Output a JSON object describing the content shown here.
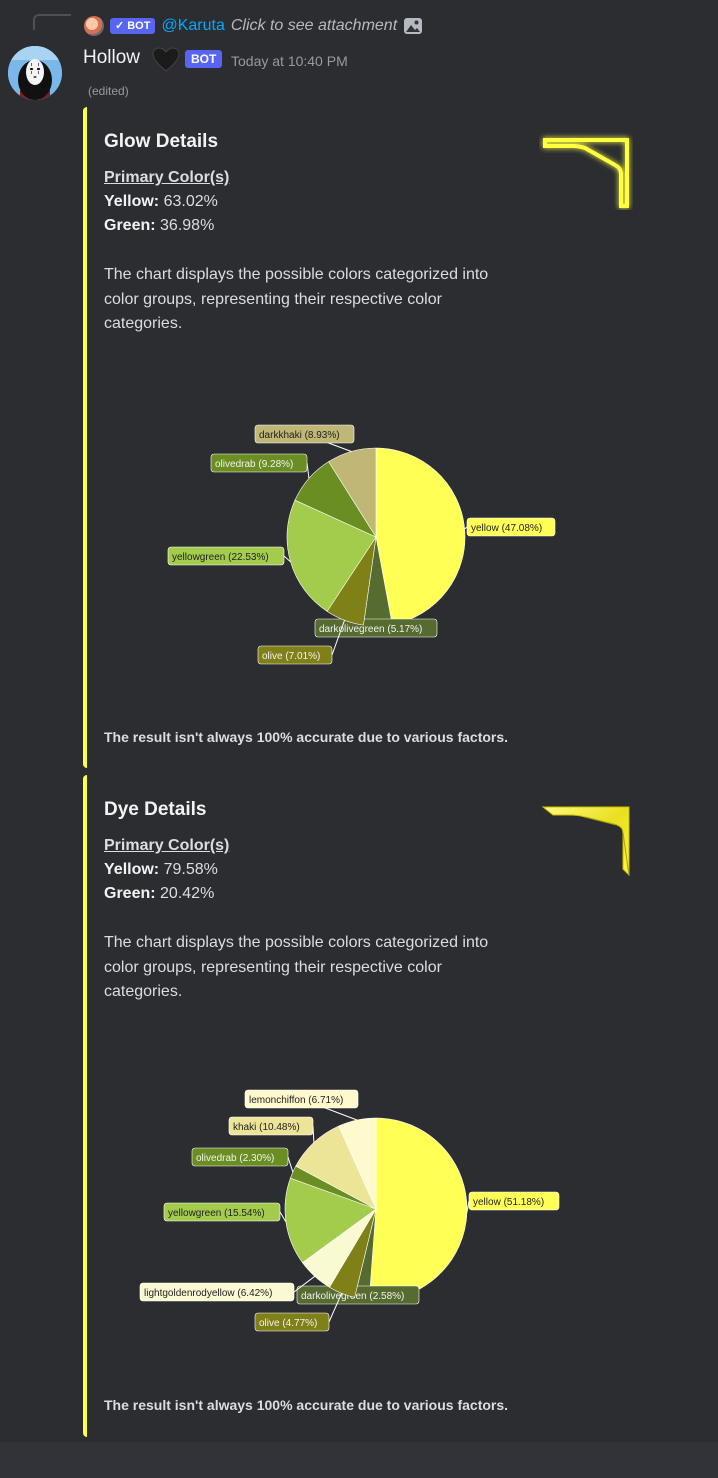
{
  "reply": {
    "bot_badge": "BOT",
    "mention": "@Karuta",
    "text": "Click to see attachment"
  },
  "message": {
    "username": "Hollow",
    "bot_badge": "BOT",
    "timestamp": "Today at 10:40 PM",
    "edited": "(edited)"
  },
  "embeds": [
    {
      "title": "Glow Details",
      "subtitle": "Primary Color(s)",
      "lines": [
        {
          "label": "Yellow:",
          "value": "63.02%"
        },
        {
          "label": "Green:",
          "value": "36.98%"
        }
      ],
      "description": "The chart displays the possible colors categorized into color groups, representing their respective color categories.",
      "footer": "The result isn't always 100% accurate due to various factors."
    },
    {
      "title": "Dye Details",
      "subtitle": "Primary Color(s)",
      "lines": [
        {
          "label": "Yellow:",
          "value": "79.58%"
        },
        {
          "label": "Green:",
          "value": "20.42%"
        }
      ],
      "description": "The chart displays the possible colors categorized into color groups, representing their respective color categories.",
      "footer": "The result isn't always 100% accurate due to various factors."
    }
  ],
  "colors": {
    "embed_border": "#ffff44",
    "mention": "#00a8fc",
    "bot_badge": "#5865f2"
  },
  "chart_data": [
    {
      "type": "pie",
      "title": "",
      "series": [
        {
          "name": "yellow",
          "value": 47.08,
          "label": "yellow (47.08%)",
          "color": "#ffff55"
        },
        {
          "name": "darkolivegreen",
          "value": 5.17,
          "label": "darkolivegreen (5.17%)",
          "color": "#556b2f"
        },
        {
          "name": "olive",
          "value": 7.01,
          "label": "olive (7.01%)",
          "color": "#808018"
        },
        {
          "name": "yellowgreen",
          "value": 22.53,
          "label": "yellowgreen (22.53%)",
          "color": "#a4cc4c"
        },
        {
          "name": "olivedrab",
          "value": 9.28,
          "label": "olivedrab (9.28%)",
          "color": "#6b8e23"
        },
        {
          "name": "darkkhaki",
          "value": 8.93,
          "label": "darkkhaki (8.93%)",
          "color": "#c0b676"
        }
      ]
    },
    {
      "type": "pie",
      "title": "",
      "series": [
        {
          "name": "yellow",
          "value": 51.18,
          "label": "yellow (51.18%)",
          "color": "#ffff55"
        },
        {
          "name": "darkolivegreen",
          "value": 2.58,
          "label": "darkolivegreen (2.58%)",
          "color": "#556b2f"
        },
        {
          "name": "olive",
          "value": 4.77,
          "label": "olive (4.77%)",
          "color": "#808018"
        },
        {
          "name": "lightgoldenrodyellow",
          "value": 6.42,
          "label": "lightgoldenrodyellow (6.42%)",
          "color": "#fafad2"
        },
        {
          "name": "yellowgreen",
          "value": 15.54,
          "label": "yellowgreen (15.54%)",
          "color": "#a4cc4c"
        },
        {
          "name": "olivedrab",
          "value": 2.3,
          "label": "olivedrab (2.30%)",
          "color": "#6b8e23"
        },
        {
          "name": "khaki",
          "value": 10.48,
          "label": "khaki (10.48%)",
          "color": "#ece496"
        },
        {
          "name": "lemonchiffon",
          "value": 6.71,
          "label": "lemonchiffon (6.71%)",
          "color": "#fffacd"
        }
      ]
    }
  ]
}
